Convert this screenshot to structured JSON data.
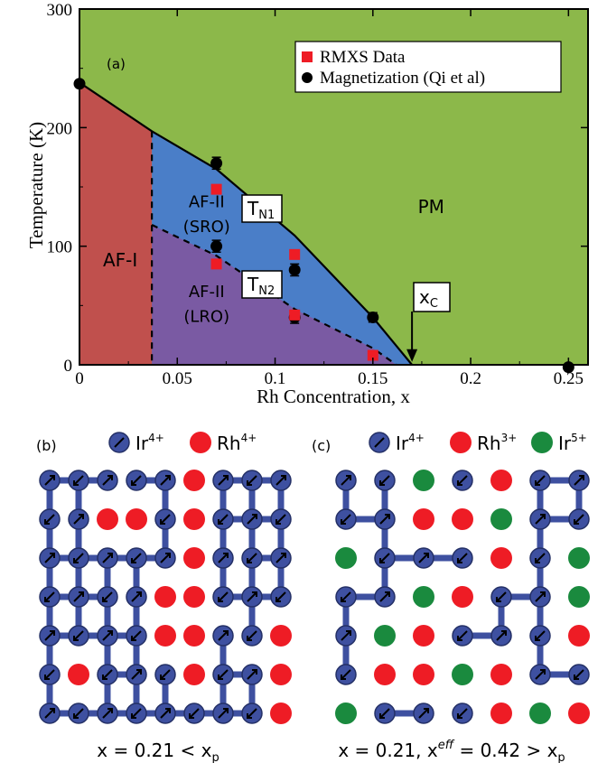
{
  "chart_data": [
    {
      "type": "area",
      "panel_label": "(a)",
      "xlabel": "Rh Concentration, x",
      "ylabel": "Temperature (K)",
      "xlim": [
        0,
        0.26
      ],
      "ylim": [
        0,
        300
      ],
      "x_ticks": [
        0,
        0.05,
        0.1,
        0.15,
        0.2,
        0.25
      ],
      "x_tick_labels": [
        "0",
        "0.05",
        "0.1",
        "0.15",
        "0.2",
        "0.25"
      ],
      "y_ticks": [
        0,
        100,
        200,
        300
      ],
      "y_tick_labels": [
        "0",
        "100",
        "200",
        "300"
      ],
      "legend": {
        "placement": "top-right",
        "entries": [
          {
            "label": "RMXS Data",
            "marker": "square",
            "color": "#ee1c25"
          },
          {
            "label": "Magnetization (Qi et al)",
            "marker": "circle",
            "color": "#000000"
          }
        ]
      },
      "regions": [
        {
          "label": "PM",
          "color": "#8cb84a"
        },
        {
          "label": "AF-I",
          "color": "#c0504d"
        },
        {
          "label_line1": "AF-II",
          "label_line2": "(SRO)",
          "color": "#4a7ec8"
        },
        {
          "label_line1": "AF-II",
          "label_line2": "(LRO)",
          "color": "#7a5aa3"
        }
      ],
      "phase_boundaries": {
        "TN1": [
          [
            0,
            238
          ],
          [
            0.037,
            197
          ],
          [
            0.07,
            165
          ],
          [
            0.11,
            109
          ],
          [
            0.15,
            40
          ],
          [
            0.17,
            0
          ]
        ],
        "TN2": [
          [
            0.037,
            118
          ],
          [
            0.07,
            92
          ],
          [
            0.11,
            47
          ],
          [
            0.15,
            14
          ],
          [
            0.162,
            0
          ]
        ],
        "AF_I_boundary_x": 0.037
      },
      "annotations": {
        "TN1": {
          "main": "T",
          "sub": "N1"
        },
        "TN2": {
          "main": "T",
          "sub": "N2"
        },
        "xc": {
          "main": "x",
          "sub": "C",
          "x": 0.17
        }
      },
      "series": [
        {
          "name": "RMXS Data",
          "marker": "square",
          "color": "#ee1c25",
          "points": [
            [
              0.07,
              148
            ],
            [
              0.07,
              85
            ],
            [
              0.11,
              93
            ],
            [
              0.11,
              42
            ],
            [
              0.15,
              8
            ]
          ]
        },
        {
          "name": "Magnetization (Qi et al)",
          "marker": "circle",
          "color": "#000000",
          "points": [
            [
              0,
              237
            ],
            [
              0.07,
              170
            ],
            [
              0.07,
              100
            ],
            [
              0.11,
              80
            ],
            [
              0.11,
              40
            ],
            [
              0.15,
              40
            ],
            [
              0.25,
              -2
            ]
          ],
          "error": [
            0,
            5,
            5,
            5,
            5,
            4,
            0
          ]
        }
      ]
    },
    {
      "type": "table",
      "panel_label": "(b)",
      "legend": [
        {
          "symbol": "Ir",
          "sup": "4+",
          "kind": "ir",
          "color": "#3e50a0"
        },
        {
          "symbol": "Rh",
          "sup": "4+",
          "kind": "dot",
          "color": "#ee1c25"
        }
      ],
      "grid": [
        "IIIIIRIII",
        "IIRRIRIII",
        "IIIIIRIII",
        "IIIIRRIII",
        "IIIIRRIIR",
        "IRIIIRIIR",
        "IIIIIIIIR"
      ],
      "caption": {
        "pre": "x = 0.21 < x",
        "sub": "p"
      }
    },
    {
      "type": "table",
      "panel_label": "(c)",
      "legend": [
        {
          "symbol": "Ir",
          "sup": "4+",
          "kind": "ir",
          "color": "#3e50a0"
        },
        {
          "symbol": "Rh",
          "sup": "3+",
          "kind": "dot",
          "color": "#ee1c25"
        },
        {
          "symbol": "Ir",
          "sup": "5+",
          "kind": "dot",
          "color": "#1a8a3e"
        }
      ],
      "grid": [
        "IIGIRII",
        "IIRRGII",
        "GIIIRIG",
        "IIGRIIG",
        "IGRIIIR",
        "IRRGRII",
        "GIIIRGR"
      ],
      "caption": {
        "pre": "x = 0.21, x",
        "sup": "eff",
        "post": " = 0.42 > x",
        "sub": "p"
      }
    }
  ]
}
